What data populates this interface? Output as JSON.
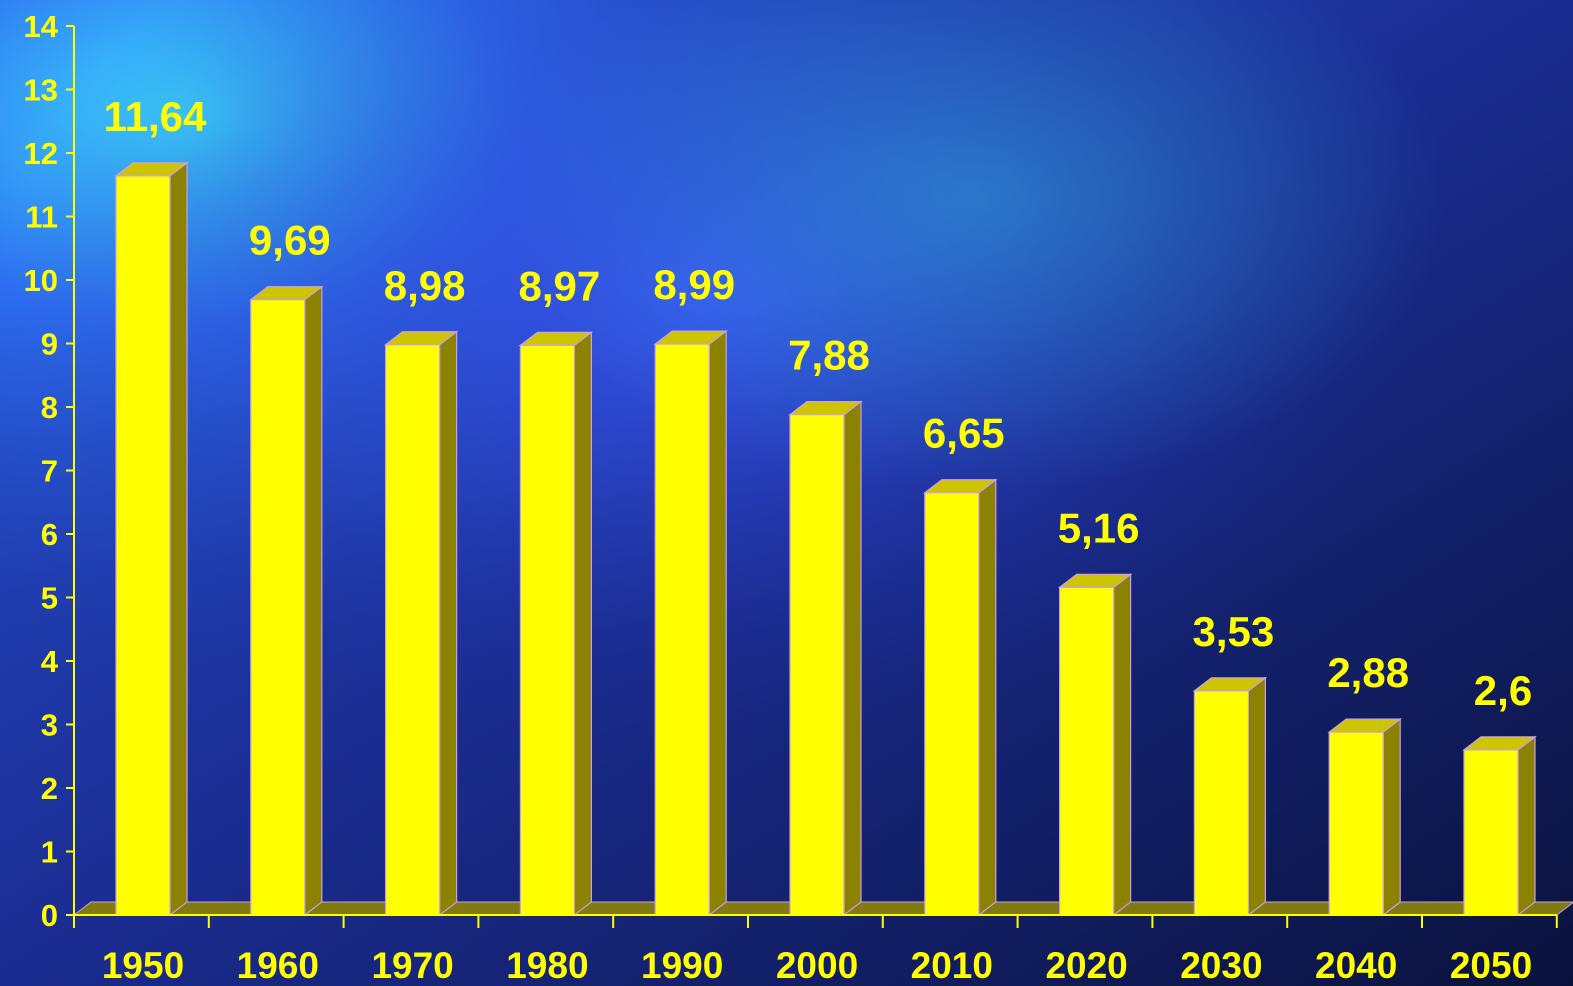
{
  "chart_data": {
    "type": "bar",
    "categories": [
      "1950",
      "1960",
      "1970",
      "1980",
      "1990",
      "2000",
      "2010",
      "2020",
      "2030",
      "2040",
      "2050"
    ],
    "values": [
      11.64,
      9.69,
      8.98,
      8.97,
      8.99,
      7.88,
      6.65,
      5.16,
      3.53,
      2.88,
      2.6
    ],
    "data_labels": [
      "11,64",
      "9,69",
      "8,98",
      "8,97",
      "8,99",
      "7,88",
      "6,65",
      "5,16",
      "3,53",
      "2,88",
      "2,6"
    ],
    "y_ticks": [
      "0",
      "1",
      "2",
      "3",
      "4",
      "5",
      "6",
      "7",
      "8",
      "9",
      "10",
      "11",
      "12",
      "13",
      "14"
    ],
    "ylim": [
      0,
      14
    ],
    "grid": false,
    "style": "3d-column",
    "colors": {
      "bar_front": "#ffff00",
      "bar_side": "#8a8200",
      "bar_top": "#cfc400",
      "bar_edge": "#c9a0e8",
      "floor": "#807a10",
      "axis": "#ffff00",
      "text": "#ffff00"
    }
  }
}
